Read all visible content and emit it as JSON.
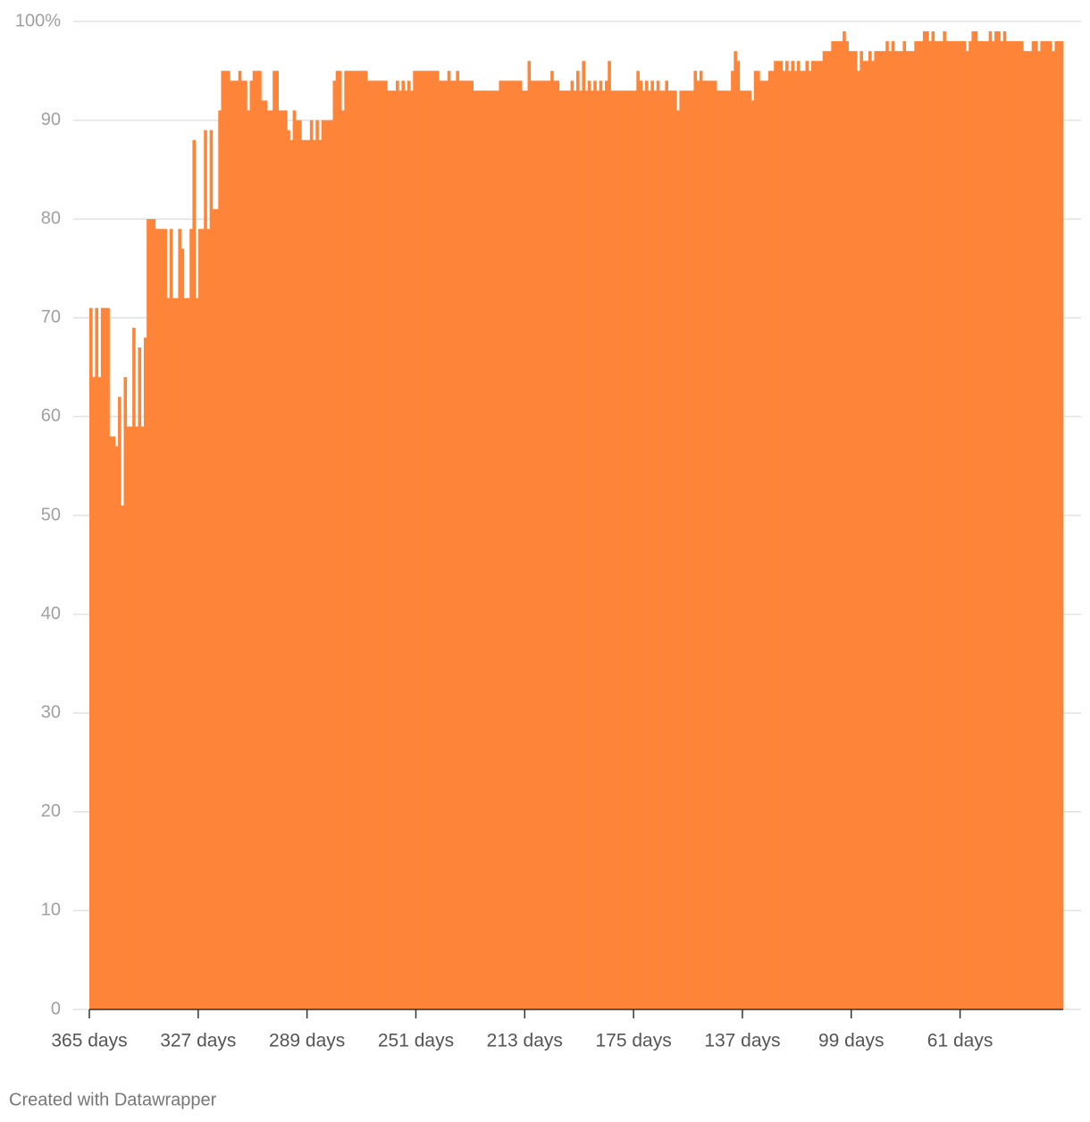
{
  "chart_data": {
    "type": "bar",
    "color": "#fe8439",
    "grid": true,
    "x": [
      365,
      364,
      363,
      362,
      361,
      360,
      359,
      358,
      357,
      356,
      355,
      354,
      353,
      352,
      351,
      350,
      349,
      348,
      347,
      346,
      345,
      344,
      343,
      342,
      341,
      340,
      339,
      338,
      337,
      336,
      335,
      334,
      333,
      332,
      331,
      330,
      329,
      328,
      327,
      326,
      325,
      324,
      323,
      322,
      321,
      320,
      319,
      318,
      317,
      316,
      315,
      314,
      313,
      312,
      311,
      310,
      309,
      308,
      307,
      306,
      305,
      304,
      303,
      302,
      301,
      300,
      299,
      298,
      297,
      296,
      295,
      294,
      293,
      292,
      291,
      290,
      289,
      288,
      287,
      286,
      285,
      284,
      283,
      282,
      281,
      280,
      279,
      278,
      277,
      276,
      275,
      274,
      273,
      272,
      271,
      270,
      269,
      268,
      267,
      266,
      265,
      264,
      263,
      262,
      261,
      260,
      259,
      258,
      257,
      256,
      255,
      254,
      253,
      252,
      251,
      250,
      249,
      248,
      247,
      246,
      245,
      244,
      243,
      242,
      241,
      240,
      239,
      238,
      237,
      236,
      235,
      234,
      233,
      232,
      231,
      230,
      229,
      228,
      227,
      226,
      225,
      224,
      223,
      222,
      221,
      220,
      219,
      218,
      217,
      216,
      215,
      214,
      213,
      212,
      211,
      210,
      209,
      208,
      207,
      206,
      205,
      204,
      203,
      202,
      201,
      200,
      199,
      198,
      197,
      196,
      195,
      194,
      193,
      192,
      191,
      190,
      189,
      188,
      187,
      186,
      185,
      184,
      183,
      182,
      181,
      180,
      179,
      178,
      177,
      176,
      175,
      174,
      173,
      172,
      171,
      170,
      169,
      168,
      167,
      166,
      165,
      164,
      163,
      162,
      161,
      160,
      159,
      158,
      157,
      156,
      155,
      154,
      153,
      152,
      151,
      150,
      149,
      148,
      147,
      146,
      145,
      144,
      143,
      142,
      141,
      140,
      139,
      138,
      137,
      136,
      135,
      134,
      133,
      132,
      131,
      130,
      129,
      128,
      127,
      126,
      125,
      124,
      123,
      122,
      121,
      120,
      119,
      118,
      117,
      116,
      115,
      114,
      113,
      112,
      111,
      110,
      109,
      108,
      107,
      106,
      105,
      104,
      103,
      102,
      101,
      100,
      99,
      98,
      97,
      96,
      95,
      94,
      93,
      92,
      91,
      90,
      89,
      88,
      87,
      86,
      85,
      84,
      83,
      82,
      81,
      80,
      79,
      78,
      77,
      76,
      75,
      74,
      73,
      72,
      71,
      70,
      69,
      68,
      67,
      66,
      65,
      64,
      63,
      62,
      61,
      60,
      59,
      58,
      57,
      56,
      55,
      54,
      53,
      52,
      51,
      50,
      49,
      48,
      47,
      46,
      45,
      44,
      43,
      42,
      41,
      40,
      39,
      38,
      37,
      36,
      35,
      34,
      33,
      32,
      31,
      30,
      29,
      28,
      27,
      26
    ],
    "values": [
      71,
      64,
      71,
      64,
      71,
      71,
      71,
      58,
      58,
      57,
      62,
      51,
      64,
      59,
      59,
      69,
      59,
      67,
      59,
      68,
      80,
      80,
      80,
      79,
      79,
      79,
      79,
      72,
      79,
      72,
      72,
      79,
      77,
      72,
      72,
      79,
      88,
      72,
      79,
      79,
      89,
      79,
      89,
      81,
      81,
      91,
      95,
      95,
      95,
      94,
      94,
      94,
      95,
      94,
      94,
      91,
      94,
      95,
      95,
      95,
      92,
      92,
      91,
      91,
      95,
      95,
      91,
      91,
      91,
      89,
      88,
      91,
      90,
      90,
      88,
      88,
      88,
      90,
      88,
      90,
      88,
      90,
      90,
      90,
      90,
      94,
      95,
      95,
      91,
      95,
      95,
      95,
      95,
      95,
      95,
      95,
      95,
      94,
      94,
      94,
      94,
      94,
      94,
      94,
      93,
      93,
      93,
      94,
      93,
      94,
      93,
      94,
      93,
      95,
      95,
      95,
      95,
      95,
      95,
      95,
      95,
      95,
      94,
      94,
      94,
      95,
      94,
      94,
      95,
      94,
      94,
      94,
      94,
      94,
      93,
      93,
      93,
      93,
      93,
      93,
      93,
      93,
      93,
      94,
      94,
      94,
      94,
      94,
      94,
      94,
      94,
      93,
      93,
      96,
      94,
      94,
      94,
      94,
      94,
      94,
      94,
      95,
      94,
      94,
      93,
      93,
      93,
      93,
      94,
      93,
      95,
      93,
      96,
      93,
      94,
      93,
      94,
      93,
      94,
      93,
      94,
      96,
      93,
      93,
      93,
      93,
      93,
      93,
      93,
      93,
      93,
      95,
      94,
      93,
      94,
      93,
      94,
      93,
      94,
      93,
      93,
      94,
      93,
      93,
      93,
      91,
      93,
      93,
      93,
      93,
      93,
      95,
      94,
      95,
      94,
      94,
      94,
      94,
      94,
      93,
      93,
      93,
      93,
      93,
      95,
      97,
      96,
      93,
      93,
      93,
      93,
      92,
      95,
      95,
      94,
      94,
      94,
      95,
      95,
      96,
      96,
      96,
      95,
      96,
      95,
      96,
      95,
      96,
      95,
      95,
      96,
      95,
      96,
      96,
      96,
      96,
      97,
      97,
      97,
      98,
      98,
      98,
      98,
      99,
      98,
      97,
      97,
      97,
      95,
      97,
      96,
      96,
      97,
      96,
      97,
      97,
      97,
      97,
      98,
      97,
      98,
      97,
      97,
      97,
      98,
      97,
      97,
      97,
      98,
      98,
      98,
      99,
      99,
      98,
      99,
      98,
      98,
      98,
      99,
      98,
      98,
      98,
      98,
      98,
      98,
      98,
      97,
      98,
      99,
      99,
      98,
      98,
      98,
      98,
      99,
      98,
      99,
      99,
      98,
      99,
      98,
      98,
      98,
      98,
      98,
      98,
      97,
      97,
      97,
      98,
      98,
      97,
      98,
      98,
      98,
      98,
      97,
      98,
      98,
      98
    ],
    "xlim": [
      365.5,
      25.5
    ],
    "xticks": [
      {
        "value": 365,
        "label": "365 days"
      },
      {
        "value": 327,
        "label": "327 days"
      },
      {
        "value": 289,
        "label": "289 days"
      },
      {
        "value": 251,
        "label": "251 days"
      },
      {
        "value": 213,
        "label": "213 days"
      },
      {
        "value": 175,
        "label": "175 days"
      },
      {
        "value": 137,
        "label": "137 days"
      },
      {
        "value": 99,
        "label": "99 days"
      },
      {
        "value": 61,
        "label": "61 days"
      }
    ],
    "ylim": [
      0,
      100
    ],
    "yticks": [
      0,
      10,
      20,
      30,
      40,
      50,
      60,
      70,
      80,
      90,
      {
        "value": 100,
        "label": "100%"
      }
    ],
    "footer": "Created with Datawrapper"
  }
}
